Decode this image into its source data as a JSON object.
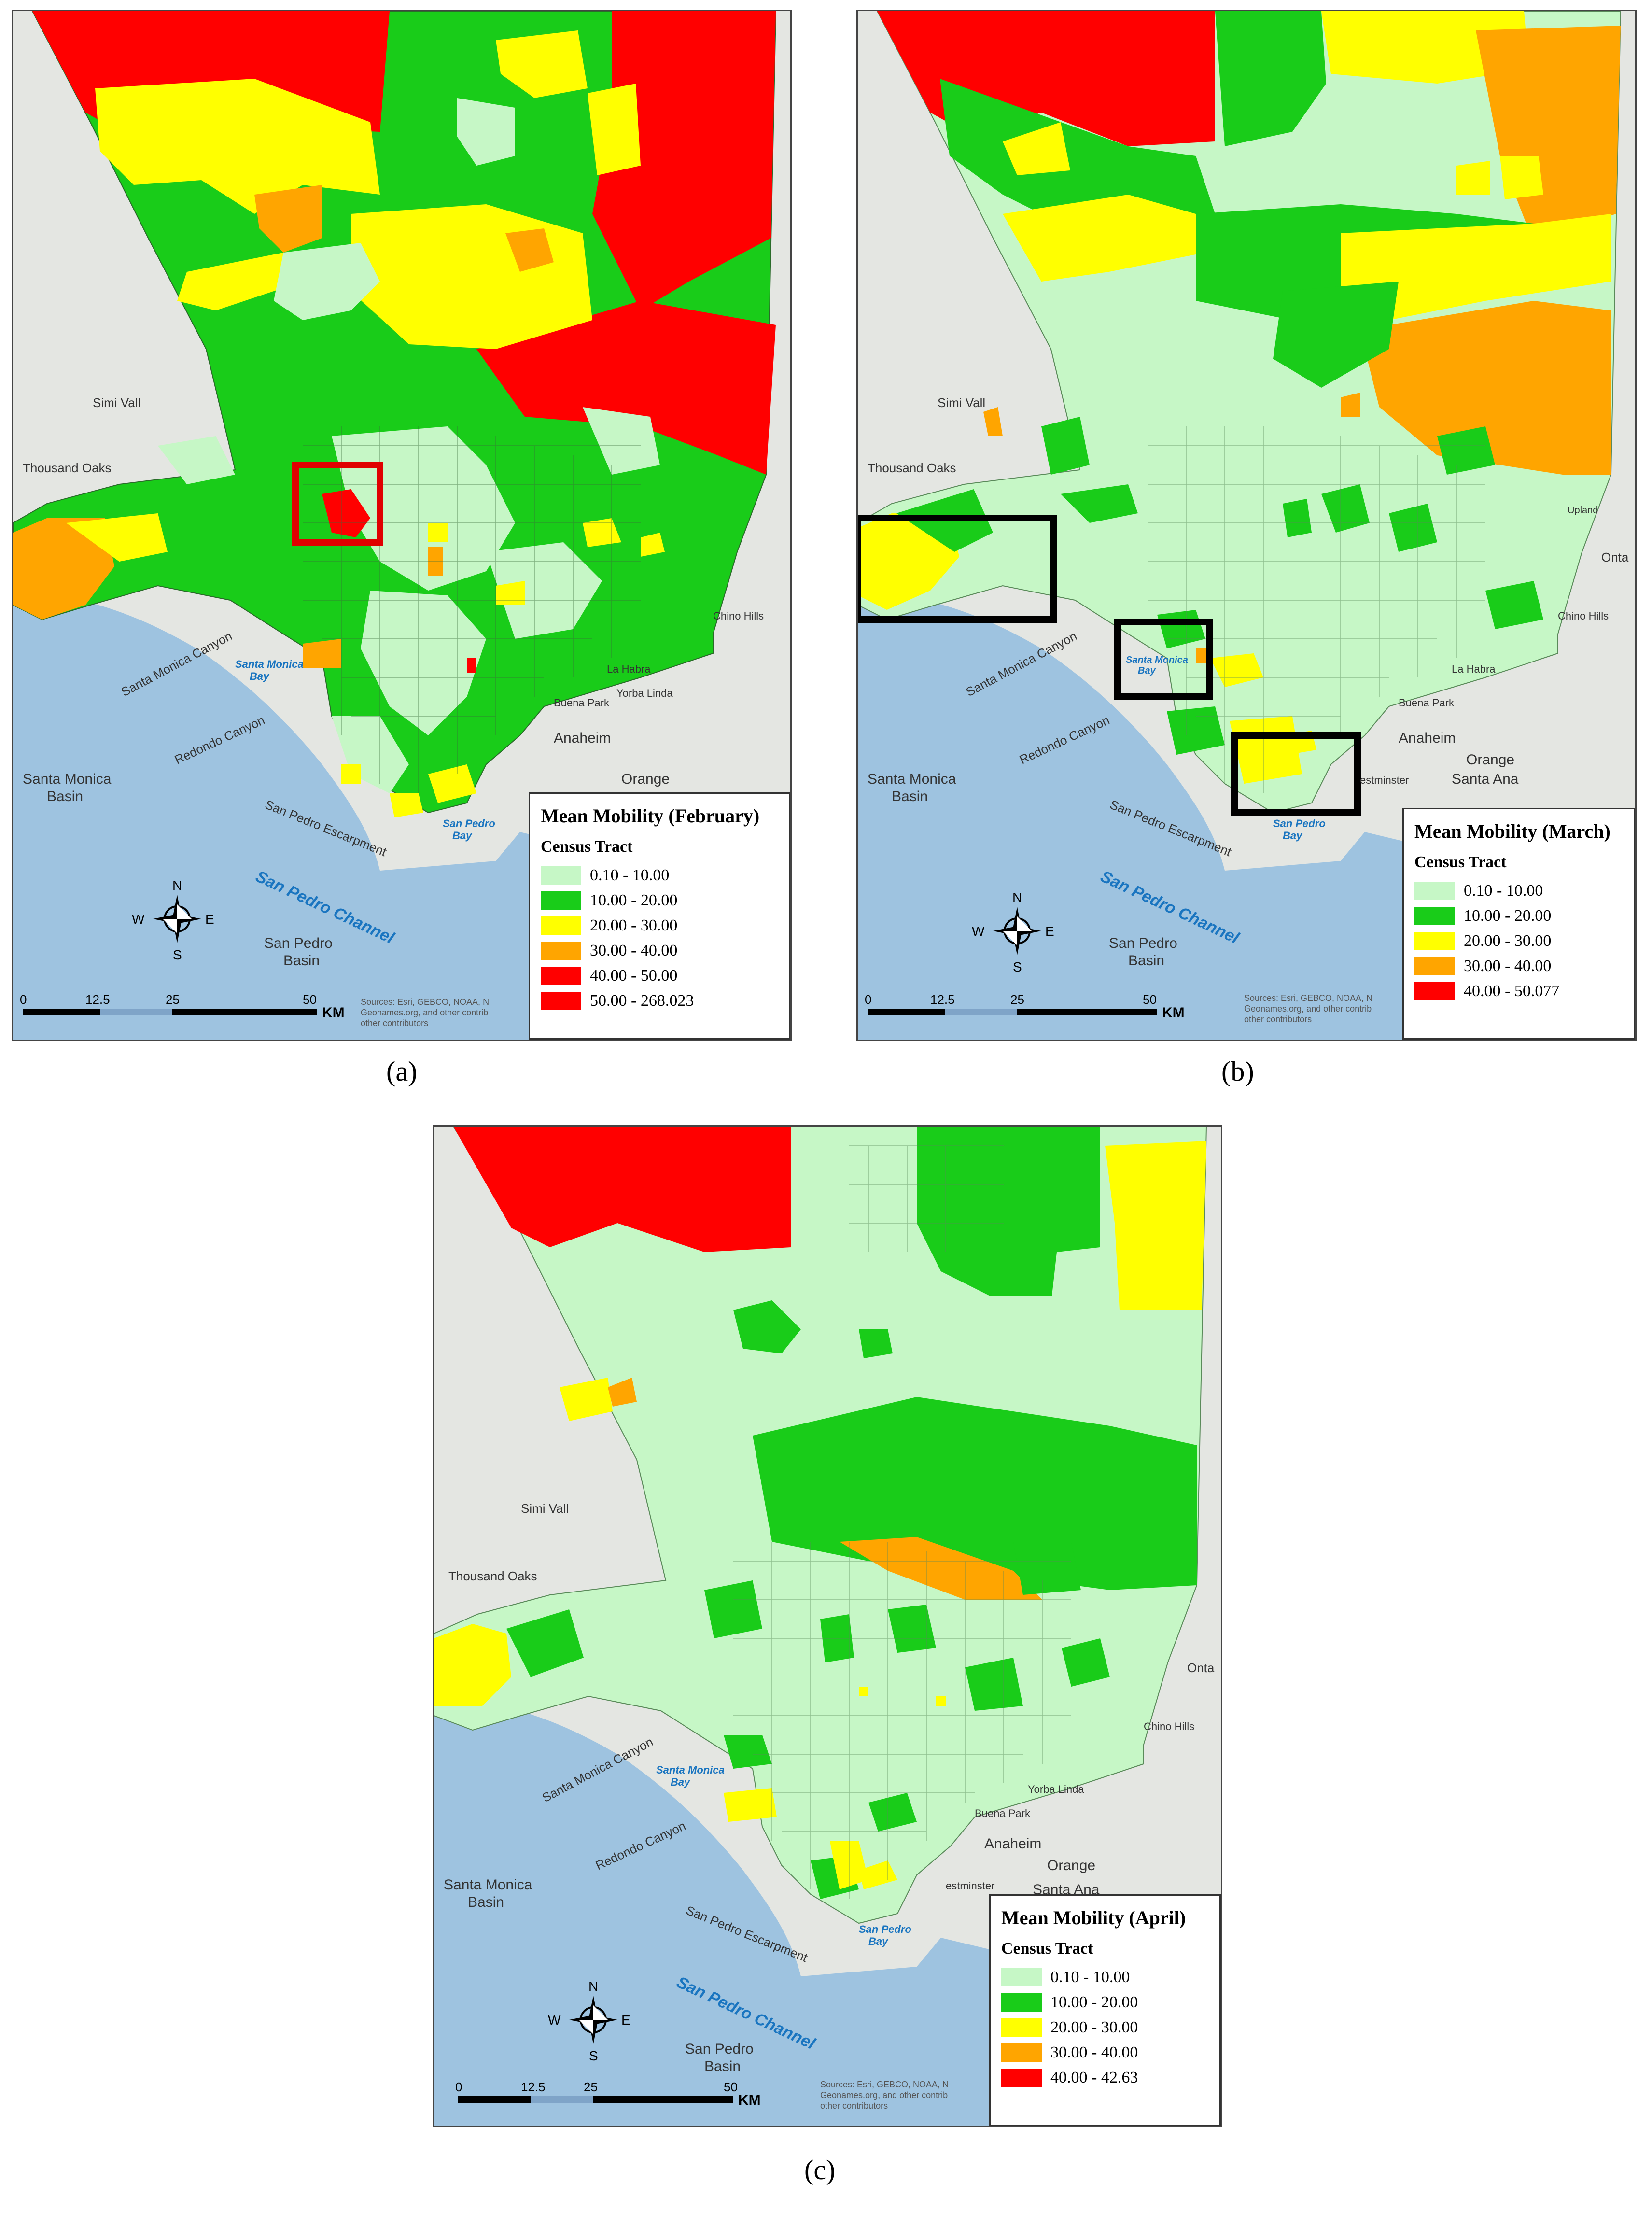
{
  "colors": {
    "light_green": "#c6f7c6",
    "green": "#19cc19",
    "yellow": "#ffff00",
    "orange": "#ffa500",
    "red": "#ff0000",
    "ocean": "#9ec3e0",
    "land": "#e4e6e2"
  },
  "common": {
    "legend_subtitle": "Census Tract",
    "north": "N",
    "south": "S",
    "east": "E",
    "west": "W",
    "scale": [
      "0",
      "12.5",
      "25",
      "50"
    ],
    "scale_unit": "KM",
    "attribution_1": "Sources: Esri, GEBCO, NOAA, N",
    "attribution_2": "Geonames.org, and other contrib",
    "attribution_3": "other contributors",
    "labels": {
      "simi_valley": "Simi Vall",
      "thousand_oaks": "Thousand Oaks",
      "santa_monica_canyon": "Santa Monica Canyon",
      "santa_monica_bay": "Santa Monica",
      "bay": "Bay",
      "redondo_canyon": "Redondo Canyon",
      "santa_monica_basin_1": "Santa Monica",
      "basin": "Basin",
      "san_pedro_escarpment": "San Pedro Escarpment",
      "san_pedro_channel": "San Pedro Channel",
      "san_pedro_basin_1": "San Pedro",
      "san_pedro_bay": "San Pedro",
      "anaheim": "Anaheim",
      "orange": "Orange",
      "santa_ana": "Santa Ana",
      "buena_park": "Buena Park",
      "yorba_linda": "Yorba Linda",
      "la_habra": "La Habra",
      "chino_hills": "Chino Hills",
      "ontario": "Onta",
      "upland": "Upland",
      "westminster": "estminster"
    }
  },
  "panels": [
    {
      "legend_title": "Mean Mobility (February)",
      "caption": "(a)",
      "legend": [
        {
          "label": "0.10 - 10.00",
          "color": "#c6f7c6"
        },
        {
          "label": "10.00 - 20.00",
          "color": "#19cc19"
        },
        {
          "label": "20.00 - 30.00",
          "color": "#ffff00"
        },
        {
          "label": "30.00 - 40.00",
          "color": "#ffa500"
        },
        {
          "label": "40.00 - 50.00",
          "color": "#ff0000"
        },
        {
          "label": "50.00 - 268.023",
          "color": "#ff0000"
        }
      ]
    },
    {
      "legend_title": "Mean Mobility (March)",
      "caption": "(b)",
      "legend": [
        {
          "label": "0.10 - 10.00",
          "color": "#c6f7c6"
        },
        {
          "label": "10.00 - 20.00",
          "color": "#19cc19"
        },
        {
          "label": "20.00 - 30.00",
          "color": "#ffff00"
        },
        {
          "label": "30.00 - 40.00",
          "color": "#ffa500"
        },
        {
          "label": "40.00 - 50.077",
          "color": "#ff0000"
        }
      ]
    },
    {
      "legend_title": "Mean Mobility (April)",
      "caption": "(c)",
      "legend": [
        {
          "label": "0.10 - 10.00",
          "color": "#c6f7c6"
        },
        {
          "label": "10.00 - 20.00",
          "color": "#19cc19"
        },
        {
          "label": "20.00 - 30.00",
          "color": "#ffff00"
        },
        {
          "label": "30.00 - 40.00",
          "color": "#ffa500"
        },
        {
          "label": "40.00 - 42.63",
          "color": "#ff0000"
        }
      ]
    }
  ]
}
